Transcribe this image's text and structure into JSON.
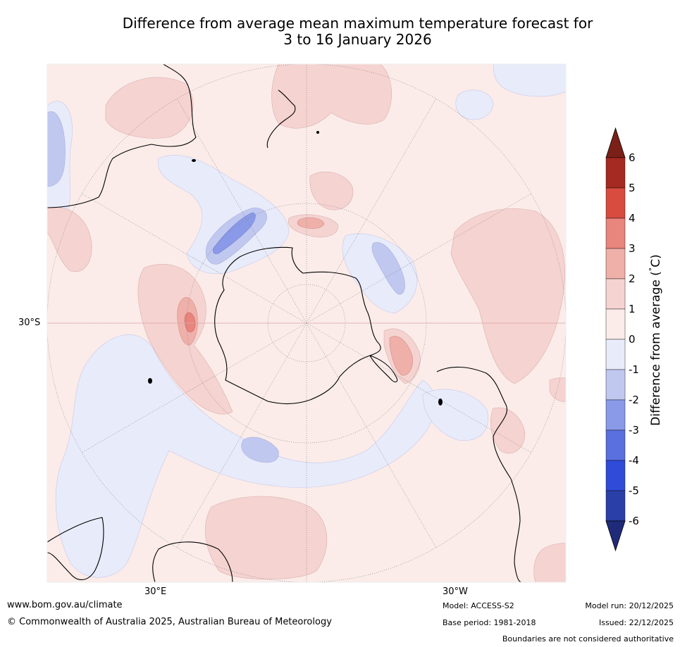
{
  "title": {
    "line1": "Difference from average mean maximum temperature forecast for",
    "line2": "3 to 16 January 2026"
  },
  "map": {
    "projection": "south polar stereographic",
    "labels": {
      "lat": "30°S",
      "lon_east": "30°E",
      "lon_west": "30°W"
    }
  },
  "colorbar": {
    "title": "Difference from average (",
    "title_unit": "C)",
    "title_degree": "°",
    "ticks": [
      "6",
      "5",
      "4",
      "3",
      "2",
      "1",
      "0",
      "-1",
      "-2",
      "-3",
      "-4",
      "-5",
      "-6"
    ],
    "colors": [
      "#7b2018",
      "#a52a22",
      "#d84b3f",
      "#e8857d",
      "#efb0aa",
      "#f5d3d1",
      "#fbece9",
      "#e8ebfa",
      "#c0c8f0",
      "#8a9ae8",
      "#5a70df",
      "#2f4bd8",
      "#2a3fa8",
      "#1f2b7a"
    ]
  },
  "footer": {
    "website": "www.bom.gov.au/climate",
    "copyright": "© Commonwealth of Australia 2025, Australian Bureau of Meteorology",
    "model": "Model: ACCESS-S2",
    "base_period": "Base period: 1981-2018",
    "model_run": "Model run: 20/12/2025",
    "issued": "Issued: 22/12/2025",
    "disclaimer": "Boundaries are not considered authoritative"
  }
}
